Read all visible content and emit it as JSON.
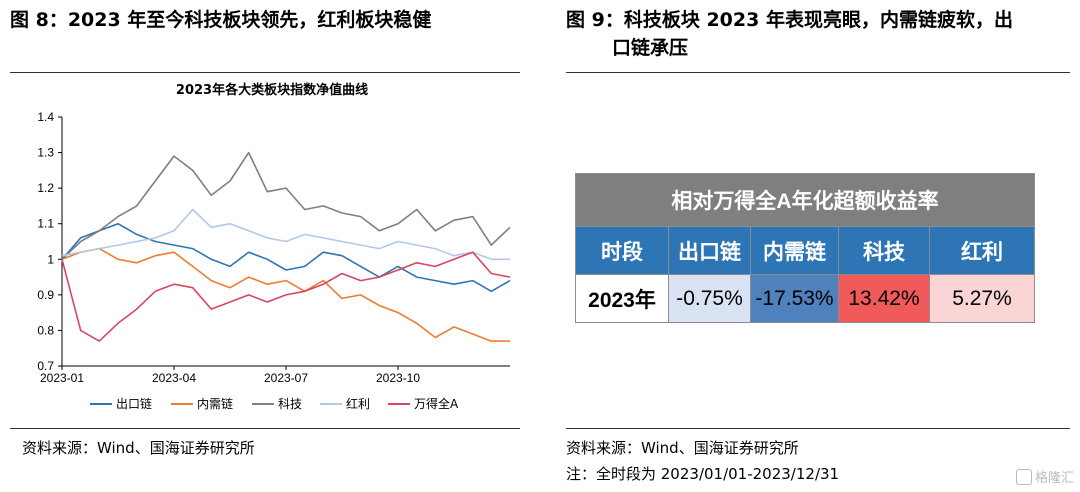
{
  "header": {
    "left_title": "图 8：2023 年至今科技板块领先，红利板块稳健",
    "right_title_line1": "图 9：科技板块 2023 年表现亮眼，内需链疲软，出",
    "right_title_line2": "口链承压"
  },
  "chart_data": {
    "type": "line",
    "title": "2023年各大类板块指数净值曲线",
    "x_ticks": [
      "2023-01",
      "2023-04",
      "2023-07",
      "2023-10"
    ],
    "x_tick_months": [
      1,
      4,
      7,
      10
    ],
    "xlim_months": [
      1,
      13
    ],
    "y_ticks": [
      "0.7",
      "0.8",
      "0.9",
      "1",
      "1.1",
      "1.2",
      "1.3",
      "1.4"
    ],
    "ylim": [
      0.7,
      1.4
    ],
    "grid": false,
    "legend_position": "bottom",
    "series": [
      {
        "name": "出口链",
        "color": "#2e75b6",
        "x": [
          1,
          1.5,
          2,
          2.5,
          3,
          3.5,
          4,
          4.5,
          5,
          5.5,
          6,
          6.5,
          7,
          7.5,
          8,
          8.5,
          9,
          9.5,
          10,
          10.5,
          11,
          11.5,
          12,
          12.5,
          13
        ],
        "y": [
          1.0,
          1.06,
          1.08,
          1.1,
          1.07,
          1.05,
          1.04,
          1.03,
          1.0,
          0.98,
          1.02,
          1.0,
          0.97,
          0.98,
          1.02,
          1.01,
          0.98,
          0.95,
          0.98,
          0.95,
          0.94,
          0.93,
          0.94,
          0.91,
          0.94
        ]
      },
      {
        "name": "内需链",
        "color": "#ed7d31",
        "x": [
          1,
          1.5,
          2,
          2.5,
          3,
          3.5,
          4,
          4.5,
          5,
          5.5,
          6,
          6.5,
          7,
          7.5,
          8,
          8.5,
          9,
          9.5,
          10,
          10.5,
          11,
          11.5,
          12,
          12.5,
          13
        ],
        "y": [
          1.0,
          1.02,
          1.03,
          1.0,
          0.99,
          1.01,
          1.02,
          0.98,
          0.94,
          0.92,
          0.95,
          0.93,
          0.94,
          0.91,
          0.94,
          0.89,
          0.9,
          0.87,
          0.85,
          0.82,
          0.78,
          0.81,
          0.79,
          0.77,
          0.77
        ]
      },
      {
        "name": "科技",
        "color": "#7f7f7f",
        "x": [
          1,
          1.5,
          2,
          2.5,
          3,
          3.5,
          4,
          4.5,
          5,
          5.5,
          6,
          6.5,
          7,
          7.5,
          8,
          8.5,
          9,
          9.5,
          10,
          10.5,
          11,
          11.5,
          12,
          12.5,
          13
        ],
        "y": [
          1.0,
          1.05,
          1.08,
          1.12,
          1.15,
          1.22,
          1.29,
          1.25,
          1.18,
          1.22,
          1.3,
          1.19,
          1.2,
          1.14,
          1.15,
          1.13,
          1.12,
          1.08,
          1.1,
          1.14,
          1.08,
          1.11,
          1.12,
          1.04,
          1.09
        ]
      },
      {
        "name": "红利",
        "color": "#b4c7e7",
        "x": [
          1,
          1.5,
          2,
          2.5,
          3,
          3.5,
          4,
          4.5,
          5,
          5.5,
          6,
          6.5,
          7,
          7.5,
          8,
          8.5,
          9,
          9.5,
          10,
          10.5,
          11,
          11.5,
          12,
          12.5,
          13
        ],
        "y": [
          1.01,
          1.02,
          1.03,
          1.04,
          1.05,
          1.06,
          1.08,
          1.14,
          1.09,
          1.1,
          1.08,
          1.06,
          1.05,
          1.07,
          1.06,
          1.05,
          1.04,
          1.03,
          1.05,
          1.04,
          1.03,
          1.01,
          1.02,
          1.0,
          1.0
        ]
      },
      {
        "name": "万得全A",
        "color": "#d9455f",
        "x": [
          1,
          1.5,
          2,
          2.5,
          3,
          3.5,
          4,
          4.5,
          5,
          5.5,
          6,
          6.5,
          7,
          7.5,
          8,
          8.5,
          9,
          9.5,
          10,
          10.5,
          11,
          11.5,
          12,
          12.5,
          13
        ],
        "y": [
          1.0,
          0.8,
          0.77,
          0.82,
          0.86,
          0.91,
          0.93,
          0.92,
          0.86,
          0.88,
          0.9,
          0.88,
          0.9,
          0.91,
          0.93,
          0.96,
          0.94,
          0.95,
          0.97,
          0.99,
          0.98,
          1.0,
          1.02,
          0.96,
          0.95
        ]
      }
    ]
  },
  "excess_table": {
    "caption": "相对万得全A年化超额收益率",
    "headers": [
      "时段",
      "出口链",
      "内需链",
      "科技",
      "红利"
    ],
    "row": {
      "period": "2023年",
      "values": [
        "-0.75%",
        "-17.53%",
        "13.42%",
        "5.27%"
      ],
      "colors": [
        "#dae3f3",
        "#4f81bd",
        "#f05a5a",
        "#fbd5d5"
      ]
    }
  },
  "footer": {
    "left_source": "资料来源：Wind、国海证券研究所",
    "right_source": "资料来源：Wind、国海证券研究所",
    "right_note": "注：全时段为 2023/01/01-2023/12/31"
  },
  "watermark": "格隆汇"
}
